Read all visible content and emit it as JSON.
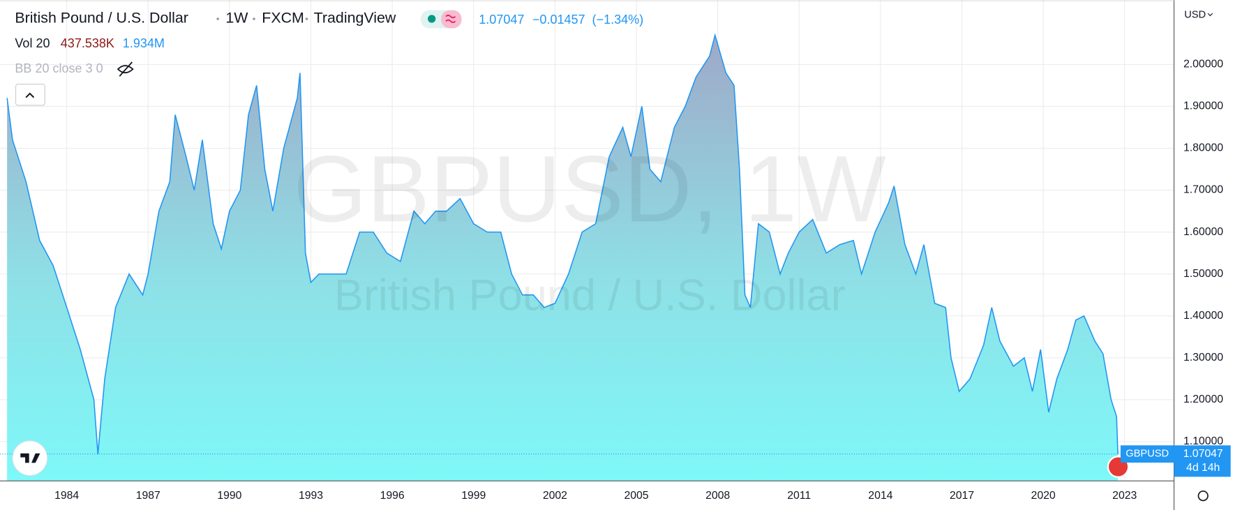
{
  "header": {
    "symbol_name": "British Pound / U.S. Dollar",
    "interval": "1W",
    "exchange": "FXCM",
    "source": "TradingView",
    "price": "1.07047",
    "change": "−0.01457",
    "change_percent": "(−1.34%)"
  },
  "indicators": {
    "volume_name": "Vol 20",
    "volume_value": "437.538K",
    "volume_ma": "1.934M",
    "bb_name": "BB 20 close 3 0"
  },
  "watermark": {
    "symbol": "GBPUSD, 1W",
    "description": "British Pound / U.S. Dollar"
  },
  "price_axis_currency": "USD",
  "last_price_tag": {
    "symbol": "GBPUSD",
    "price": "1.07047",
    "countdown": "4d 14h"
  },
  "chart_data": {
    "type": "area",
    "color": "#2196f3",
    "grid": true,
    "x": [
      1981.8,
      1982.0,
      1982.5,
      1983.0,
      1983.5,
      1984.0,
      1984.5,
      1985.0,
      1985.15,
      1985.4,
      1985.8,
      1986.3,
      1986.8,
      1987.0,
      1987.4,
      1987.8,
      1988.0,
      1988.4,
      1988.7,
      1989.0,
      1989.4,
      1989.7,
      1990.0,
      1990.4,
      1990.7,
      1991.0,
      1991.3,
      1991.6,
      1992.0,
      1992.5,
      1992.6,
      1992.8,
      1993.0,
      1993.3,
      1993.8,
      1994.3,
      1994.8,
      1995.3,
      1995.8,
      1996.3,
      1996.8,
      1997.2,
      1997.6,
      1998.0,
      1998.5,
      1999.0,
      1999.5,
      2000.0,
      2000.4,
      2000.8,
      2001.2,
      2001.6,
      2002.0,
      2002.5,
      2003.0,
      2003.5,
      2004.0,
      2004.5,
      2004.8,
      2005.2,
      2005.5,
      2005.9,
      2006.4,
      2006.8,
      2007.2,
      2007.7,
      2007.9,
      2008.3,
      2008.6,
      2008.8,
      2009.0,
      2009.2,
      2009.5,
      2009.9,
      2010.3,
      2010.6,
      2011.0,
      2011.5,
      2012.0,
      2012.5,
      2013.0,
      2013.3,
      2013.8,
      2014.3,
      2014.5,
      2014.9,
      2015.3,
      2015.6,
      2016.0,
      2016.4,
      2016.6,
      2016.9,
      2017.3,
      2017.8,
      2018.1,
      2018.4,
      2018.9,
      2019.3,
      2019.6,
      2019.9,
      2020.2,
      2020.5,
      2020.9,
      2021.2,
      2021.5,
      2021.9,
      2022.2,
      2022.5,
      2022.7,
      2022.75
    ],
    "values": [
      1.92,
      1.82,
      1.72,
      1.58,
      1.52,
      1.42,
      1.32,
      1.2,
      1.07,
      1.25,
      1.42,
      1.5,
      1.45,
      1.5,
      1.65,
      1.72,
      1.88,
      1.78,
      1.7,
      1.82,
      1.62,
      1.56,
      1.65,
      1.7,
      1.88,
      1.95,
      1.75,
      1.65,
      1.8,
      1.92,
      1.98,
      1.55,
      1.48,
      1.5,
      1.5,
      1.5,
      1.6,
      1.6,
      1.55,
      1.53,
      1.65,
      1.62,
      1.65,
      1.65,
      1.68,
      1.62,
      1.6,
      1.6,
      1.5,
      1.45,
      1.45,
      1.42,
      1.43,
      1.5,
      1.6,
      1.62,
      1.78,
      1.85,
      1.78,
      1.9,
      1.75,
      1.72,
      1.85,
      1.9,
      1.97,
      2.02,
      2.07,
      1.98,
      1.95,
      1.75,
      1.45,
      1.42,
      1.62,
      1.6,
      1.5,
      1.55,
      1.6,
      1.63,
      1.55,
      1.57,
      1.58,
      1.5,
      1.6,
      1.67,
      1.71,
      1.57,
      1.5,
      1.57,
      1.43,
      1.42,
      1.3,
      1.22,
      1.25,
      1.33,
      1.42,
      1.34,
      1.28,
      1.3,
      1.22,
      1.32,
      1.17,
      1.25,
      1.32,
      1.39,
      1.4,
      1.34,
      1.31,
      1.2,
      1.16,
      1.07047
    ],
    "xlim": [
      1981.54,
      2024.82
    ],
    "xticks": [
      1984,
      1987,
      1990,
      1993,
      1996,
      1999,
      2002,
      2005,
      2008,
      2011,
      2014,
      2017,
      2020,
      2023
    ],
    "ylim": [
      1.0062,
      2.1538
    ],
    "yticks": [
      {
        "value": 1.1,
        "label": "1.10000"
      },
      {
        "value": 1.2,
        "label": "1.20000"
      },
      {
        "value": 1.3,
        "label": "1.30000"
      },
      {
        "value": 1.4,
        "label": "1.40000"
      },
      {
        "value": 1.5,
        "label": "1.50000"
      },
      {
        "value": 1.6,
        "label": "1.60000"
      },
      {
        "value": 1.7,
        "label": "1.70000"
      },
      {
        "value": 1.8,
        "label": "1.80000"
      },
      {
        "value": 1.9,
        "label": "1.90000"
      },
      {
        "value": 2.0,
        "label": "2.00000"
      }
    ]
  }
}
